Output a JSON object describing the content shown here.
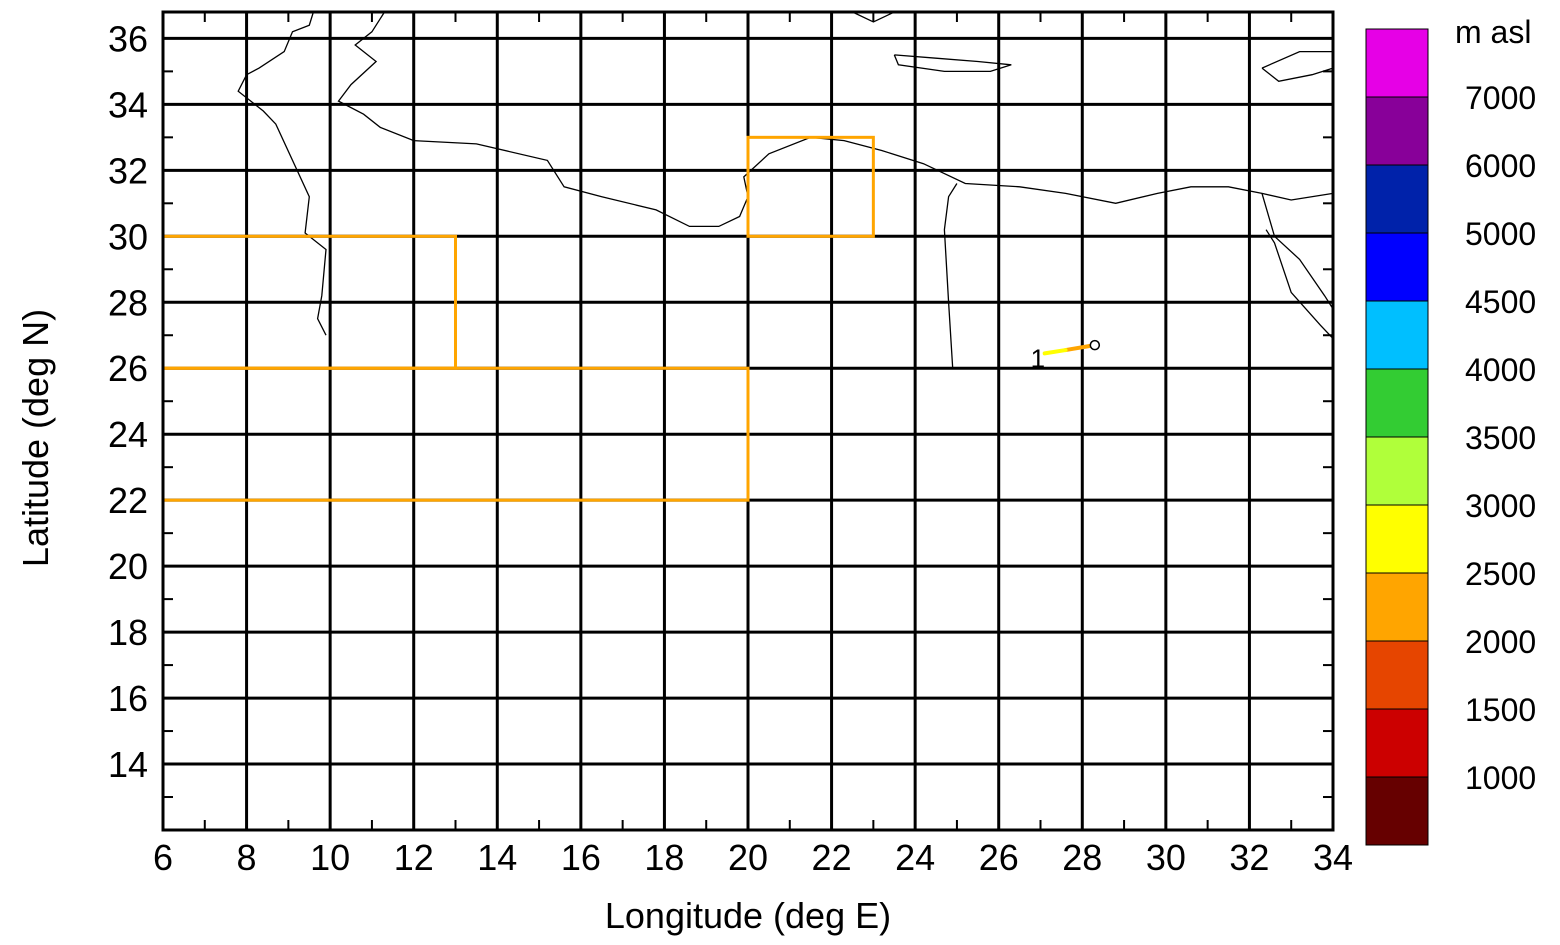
{
  "map": {
    "xlabel": "Longitude (deg E)",
    "ylabel": "Latitude (deg N)",
    "xlim": [
      6,
      34
    ],
    "ylim": [
      12,
      36.8
    ],
    "x_ticks": [
      6,
      8,
      10,
      12,
      14,
      16,
      18,
      20,
      22,
      24,
      26,
      28,
      30,
      32,
      34
    ],
    "y_ticks": [
      14,
      16,
      18,
      20,
      22,
      24,
      26,
      28,
      30,
      32,
      34,
      36
    ],
    "grid": true,
    "regions": [
      {
        "lon_min": 6,
        "lon_max": 13,
        "lat_min": 26,
        "lat_max": 30,
        "color": "#FFA500"
      },
      {
        "lon_min": 6,
        "lon_max": 20,
        "lat_min": 22,
        "lat_max": 26,
        "color": "#FFA500"
      },
      {
        "lon_min": 20,
        "lon_max": 23,
        "lat_min": 30,
        "lat_max": 33,
        "color": "#FFA500"
      }
    ],
    "trajectory": {
      "label": "1",
      "start": {
        "lon": 28.3,
        "lat": 26.7
      },
      "points": [
        {
          "lon": 28.3,
          "lat": 26.7,
          "color": "#FFA500"
        },
        {
          "lon": 27.6,
          "lat": 26.55,
          "color": "#FFA500"
        },
        {
          "lon": 27.1,
          "lat": 26.45,
          "color": "#FFFF00"
        }
      ]
    },
    "coastlines": [
      [
        [
          9.6,
          36.8
        ],
        [
          9.5,
          36.4
        ],
        [
          9.1,
          36.2
        ],
        [
          8.9,
          35.6
        ],
        [
          8.3,
          35.1
        ],
        [
          8.0,
          34.9
        ],
        [
          7.8,
          34.4
        ],
        [
          8.4,
          33.8
        ],
        [
          8.7,
          33.4
        ],
        [
          9.5,
          31.2
        ],
        [
          9.4,
          30.1
        ],
        [
          9.9,
          29.6
        ],
        [
          9.8,
          28.2
        ],
        [
          9.7,
          27.5
        ],
        [
          9.9,
          27.0
        ]
      ],
      [
        [
          11.3,
          36.8
        ],
        [
          11.0,
          36.2
        ],
        [
          10.6,
          35.8
        ],
        [
          11.1,
          35.3
        ],
        [
          10.5,
          34.6
        ],
        [
          10.2,
          34.1
        ],
        [
          10.8,
          33.7
        ],
        [
          11.2,
          33.3
        ],
        [
          12.0,
          32.9
        ],
        [
          13.5,
          32.8
        ],
        [
          15.2,
          32.3
        ],
        [
          15.6,
          31.5
        ],
        [
          16.5,
          31.2
        ],
        [
          17.8,
          30.8
        ],
        [
          18.6,
          30.3
        ],
        [
          19.3,
          30.3
        ],
        [
          19.8,
          30.6
        ],
        [
          20.0,
          31.2
        ],
        [
          19.9,
          31.8
        ],
        [
          20.5,
          32.5
        ],
        [
          21.5,
          33.0
        ],
        [
          22.3,
          32.9
        ],
        [
          23.2,
          32.6
        ],
        [
          24.2,
          32.2
        ],
        [
          25.2,
          31.6
        ],
        [
          26.5,
          31.5
        ],
        [
          27.6,
          31.3
        ],
        [
          28.8,
          31.0
        ],
        [
          29.8,
          31.3
        ],
        [
          30.6,
          31.5
        ],
        [
          31.5,
          31.5
        ],
        [
          32.3,
          31.3
        ],
        [
          33.0,
          31.1
        ],
        [
          34.0,
          31.3
        ]
      ],
      [
        [
          25.0,
          31.6
        ],
        [
          24.8,
          31.2
        ],
        [
          24.7,
          30.2
        ],
        [
          24.8,
          28.0
        ],
        [
          24.9,
          26.0
        ]
      ],
      [
        [
          22.5,
          36.8
        ],
        [
          23.0,
          36.5
        ],
        [
          23.5,
          36.8
        ]
      ],
      [
        [
          23.5,
          35.5
        ],
        [
          24.5,
          35.4
        ],
        [
          25.5,
          35.3
        ],
        [
          26.3,
          35.2
        ],
        [
          25.8,
          35.0
        ],
        [
          24.7,
          35.0
        ],
        [
          23.6,
          35.2
        ],
        [
          23.5,
          35.5
        ]
      ],
      [
        [
          32.3,
          35.1
        ],
        [
          33.2,
          35.6
        ],
        [
          34.0,
          35.6
        ]
      ],
      [
        [
          32.3,
          35.1
        ],
        [
          32.7,
          34.7
        ],
        [
          33.5,
          34.9
        ],
        [
          34.0,
          35.1
        ]
      ],
      [
        [
          32.3,
          31.3
        ],
        [
          32.6,
          30.0
        ],
        [
          33.2,
          29.3
        ],
        [
          33.8,
          28.2
        ],
        [
          34.0,
          27.8
        ]
      ],
      [
        [
          34.0,
          26.9
        ],
        [
          33.7,
          27.3
        ],
        [
          33.0,
          28.3
        ],
        [
          32.6,
          29.8
        ],
        [
          32.4,
          30.2
        ]
      ]
    ]
  },
  "colorbar": {
    "title": "m asl",
    "bins": [
      {
        "color": "#660000"
      },
      {
        "color": "#CC0000",
        "label": "1000"
      },
      {
        "color": "#E64500",
        "label": "1500"
      },
      {
        "color": "#FFA500",
        "label": "2000"
      },
      {
        "color": "#FFFF00",
        "label": "2500"
      },
      {
        "color": "#B0FF3A",
        "label": "3000"
      },
      {
        "color": "#33CC33",
        "label": "3500"
      },
      {
        "color": "#00BFFF",
        "label": "4000"
      },
      {
        "color": "#0000FF",
        "label": "4500"
      },
      {
        "color": "#0022AA",
        "label": "5000"
      },
      {
        "color": "#880099",
        "label": "6000"
      },
      {
        "color": "#E600E6",
        "label": "7000"
      }
    ]
  }
}
